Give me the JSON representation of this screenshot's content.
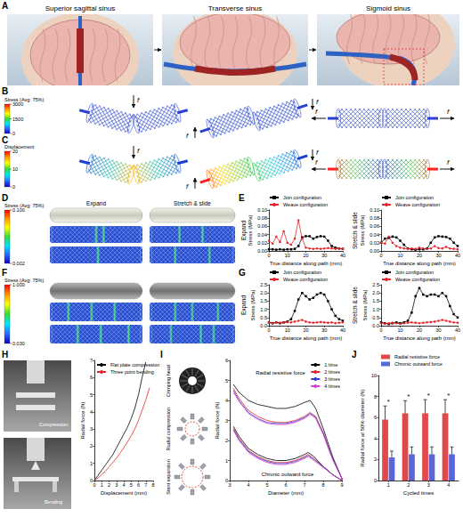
{
  "panels": {
    "A": {
      "label": "A",
      "scenes": [
        "Superior sagittal sinus",
        "Transverse sinus",
        "Sigmoid sinus"
      ]
    },
    "B": {
      "label": "B",
      "colorbar": {
        "title": "Stress (Avg: 75%)",
        "ticks": [
          3000,
          1500,
          0
        ]
      },
      "force": "f"
    },
    "C": {
      "label": "C",
      "colorbar": {
        "title": "Displacement",
        "ticks": [
          20,
          10,
          0
        ]
      },
      "force": "f"
    },
    "D": {
      "label": "D",
      "colorbar": {
        "title": "Stress (Avg: 75%)",
        "ticks": [
          {
            "value": 0.1,
            "label": "0.100"
          },
          {
            "value": 0.002,
            "label": "0.002"
          }
        ]
      },
      "columns": [
        "Expand",
        "Stretch & slide"
      ]
    },
    "E": {
      "label": "E"
    },
    "F": {
      "label": "F",
      "colorbar": {
        "title": "Stress (Avg: 75%)",
        "ticks": [
          {
            "value": 1,
            "label": "1.000"
          },
          {
            "value": 0.03,
            "label": "0.030"
          }
        ]
      }
    },
    "G": {
      "label": "G"
    },
    "H": {
      "label": "H",
      "photos": [
        "Compression",
        "Bending"
      ]
    },
    "I": {
      "label": "I",
      "icons": [
        "Crimping head",
        "Radial compression",
        "Stent expansion"
      ]
    },
    "J": {
      "label": "J"
    }
  },
  "chart_data": [
    {
      "type": "line",
      "title": "Expand",
      "x_label": "True distance along path (mm)",
      "y_label": "Stress (MPa)",
      "xlim": [
        0,
        40
      ],
      "xticks": [
        0,
        10,
        20,
        30,
        40
      ],
      "ylim": [
        0,
        0.1
      ],
      "yticks": [
        {
          "value": 0,
          "label": "0.00"
        },
        0.02,
        0.04,
        0.06,
        0.08,
        {
          "value": 0.1,
          "label": "0.10"
        }
      ],
      "grid": false,
      "series": [
        {
          "name": "Join configuration",
          "color": "#000000",
          "marker": "square",
          "line_style": "solid",
          "x": [
            0,
            2,
            4,
            6,
            8,
            10,
            12,
            14,
            16,
            18,
            20,
            22,
            24,
            26,
            28,
            30,
            32,
            34,
            36,
            38,
            40
          ],
          "values": [
            0.004,
            0.004,
            0.003,
            0.004,
            0.003,
            0.004,
            0.004,
            0.005,
            0.012,
            0.033,
            0.036,
            0.036,
            0.03,
            0.034,
            0.036,
            0.035,
            0.025,
            0.012,
            0.008,
            0.006,
            0.005
          ]
        },
        {
          "name": "Weave configuration",
          "color": "#e8232a",
          "marker": "circle",
          "line_style": "solid",
          "x": [
            0,
            2,
            4,
            6,
            8,
            10,
            12,
            14,
            16,
            18,
            20,
            22,
            24,
            26,
            28,
            30,
            32,
            34,
            36,
            38,
            40
          ],
          "values": [
            0.025,
            0.018,
            0.035,
            0.022,
            0.048,
            0.02,
            0.015,
            0.03,
            0.075,
            0.03,
            0.008,
            0.006,
            0.005,
            0.006,
            0.005,
            0.006,
            0.007,
            0.006,
            0.005,
            0.006,
            0.005
          ]
        }
      ]
    },
    {
      "type": "line",
      "title": "Stretch & slide",
      "x_label": "True distance along path (mm)",
      "y_label": "Stress (MPa)",
      "xlim": [
        0,
        40
      ],
      "xticks": [
        0,
        10,
        20,
        30,
        40
      ],
      "ylim": [
        0,
        0.1
      ],
      "yticks": [
        {
          "value": 0,
          "label": "0.00"
        },
        0.02,
        0.04,
        0.06,
        0.08,
        {
          "value": 0.1,
          "label": "0.10"
        }
      ],
      "grid": false,
      "series": [
        {
          "name": "Join configuration",
          "color": "#000000",
          "marker": "square",
          "line_style": "solid",
          "x": [
            0,
            2,
            4,
            6,
            8,
            10,
            12,
            14,
            16,
            18,
            20,
            22,
            24,
            26,
            28,
            30,
            32,
            34,
            36,
            38,
            40
          ],
          "values": [
            0.02,
            0.03,
            0.032,
            0.035,
            0.033,
            0.025,
            0.015,
            0.006,
            0.004,
            0.003,
            0.004,
            0.004,
            0.006,
            0.02,
            0.033,
            0.036,
            0.035,
            0.034,
            0.03,
            0.02,
            0.012
          ]
        },
        {
          "name": "Weave configuration",
          "color": "#e8232a",
          "marker": "circle",
          "line_style": "solid",
          "x": [
            0,
            2,
            4,
            6,
            8,
            10,
            12,
            14,
            16,
            18,
            20,
            22,
            24,
            26,
            28,
            30,
            32,
            34,
            36,
            38,
            40
          ],
          "values": [
            0.02,
            0.018,
            0.035,
            0.02,
            0.012,
            0.008,
            0.006,
            0.005,
            0.006,
            0.005,
            0.008,
            0.006,
            0.005,
            0.006,
            0.012,
            0.007,
            0.006,
            0.01,
            0.006,
            0.005,
            0.004
          ]
        }
      ]
    },
    {
      "type": "line",
      "title": "Expand",
      "x_label": "True distance along path (mm)",
      "y_label": "Stress (MPa)",
      "xlim": [
        0,
        40
      ],
      "xticks": [
        0,
        10,
        20,
        30,
        40
      ],
      "ylim": [
        0,
        2.5
      ],
      "yticks": [
        {
          "value": 0,
          "label": "0.0"
        },
        0.5,
        {
          "value": 1,
          "label": "1.0"
        },
        1.5,
        {
          "value": 2,
          "label": "2.0"
        },
        2.5
      ],
      "grid": false,
      "series": [
        {
          "name": "Join configuration",
          "color": "#000000",
          "marker": "square",
          "line_style": "solid",
          "x": [
            0,
            2,
            4,
            6,
            8,
            10,
            12,
            14,
            16,
            18,
            20,
            22,
            24,
            26,
            28,
            30,
            32,
            34,
            36,
            38,
            40
          ],
          "values": [
            0.2,
            0.15,
            0.2,
            0.15,
            0.2,
            0.25,
            0.4,
            0.9,
            1.6,
            2.0,
            1.8,
            1.6,
            1.7,
            1.9,
            2.0,
            1.9,
            1.5,
            1.0,
            0.6,
            0.4,
            0.3
          ]
        },
        {
          "name": "Weave configuration",
          "color": "#e8232a",
          "marker": "circle",
          "line_style": "solid",
          "x": [
            0,
            2,
            4,
            6,
            8,
            10,
            12,
            14,
            16,
            18,
            20,
            22,
            24,
            26,
            28,
            30,
            32,
            34,
            36,
            38,
            40
          ],
          "values": [
            0.2,
            0.15,
            0.2,
            0.18,
            0.2,
            0.22,
            0.2,
            0.25,
            0.3,
            0.35,
            0.25,
            0.2,
            0.18,
            0.2,
            0.22,
            0.2,
            0.18,
            0.2,
            0.15,
            0.18,
            0.2
          ]
        }
      ]
    },
    {
      "type": "line",
      "title": "Stretch & slide",
      "x_label": "True distance along path (mm)",
      "y_label": "Stress (MPa)",
      "xlim": [
        0,
        40
      ],
      "xticks": [
        0,
        10,
        20,
        30,
        40
      ],
      "ylim": [
        0,
        2.5
      ],
      "yticks": [
        {
          "value": 0,
          "label": "0.0"
        },
        0.5,
        {
          "value": 1,
          "label": "1.0"
        },
        1.5,
        {
          "value": 2,
          "label": "2.0"
        },
        2.5
      ],
      "grid": false,
      "series": [
        {
          "name": "Join configuration",
          "color": "#000000",
          "marker": "square",
          "line_style": "solid",
          "x": [
            0,
            2,
            4,
            6,
            8,
            10,
            12,
            14,
            16,
            18,
            20,
            22,
            24,
            26,
            28,
            30,
            32,
            34,
            36,
            38,
            40
          ],
          "values": [
            0.2,
            0.15,
            0.1,
            0.15,
            0.2,
            0.15,
            0.2,
            0.3,
            0.8,
            1.8,
            2.3,
            1.9,
            1.8,
            1.9,
            1.9,
            1.8,
            2.0,
            1.8,
            1.2,
            0.7,
            0.5
          ]
        },
        {
          "name": "Weave configuration",
          "color": "#e8232a",
          "marker": "circle",
          "line_style": "solid",
          "x": [
            0,
            2,
            4,
            6,
            8,
            10,
            12,
            14,
            16,
            18,
            20,
            22,
            24,
            26,
            28,
            30,
            32,
            34,
            36,
            38,
            40
          ],
          "values": [
            0.15,
            0.12,
            0.15,
            0.18,
            0.15,
            0.12,
            0.15,
            0.18,
            0.2,
            0.18,
            0.15,
            0.18,
            0.2,
            0.22,
            0.25,
            0.3,
            0.35,
            0.3,
            0.25,
            0.2,
            0.18
          ]
        }
      ]
    },
    {
      "type": "line",
      "x_label": "Displacement (mm)",
      "y_label": "Radial force (N)",
      "xlim": [
        0,
        8
      ],
      "xticks": [
        0,
        1,
        2,
        3,
        4,
        5,
        6,
        7,
        8
      ],
      "ylim": [
        0,
        7
      ],
      "yticks": [
        0,
        1,
        2,
        3,
        4,
        5,
        6,
        7
      ],
      "grid": false,
      "series": [
        {
          "name": "Flat plate compression",
          "color": "#000000",
          "marker": "none",
          "line_style": "solid",
          "x": [
            0,
            0.5,
            1,
            1.5,
            2,
            2.5,
            3,
            3.5,
            4,
            4.5,
            5,
            5.5,
            6,
            6.5,
            7
          ],
          "values": [
            0,
            0.3,
            0.6,
            0.9,
            1.2,
            1.5,
            1.9,
            2.3,
            2.7,
            3.1,
            3.6,
            4.2,
            5.0,
            6.0,
            6.9
          ]
        },
        {
          "name": "Three point bending",
          "color": "#e8232a",
          "marker": "none",
          "line_style": "solid",
          "x": [
            0,
            0.5,
            1,
            1.5,
            2,
            2.5,
            3,
            3.5,
            4,
            4.5,
            5,
            5.5,
            6,
            6.5,
            7,
            7.5
          ],
          "values": [
            0,
            0.15,
            0.35,
            0.55,
            0.8,
            1.05,
            1.3,
            1.6,
            1.9,
            2.25,
            2.6,
            3.0,
            3.5,
            4.1,
            4.7,
            5.4
          ]
        }
      ]
    },
    {
      "type": "line",
      "x_label": "Diameter (mm)",
      "y_label": "Radial force (N)",
      "xlim": [
        3,
        9
      ],
      "xticks": [
        3,
        4,
        5,
        6,
        7,
        8,
        9
      ],
      "ylim": [
        0,
        6
      ],
      "yticks": [
        0,
        1,
        2,
        3,
        4,
        5,
        6
      ],
      "grid": false,
      "annotations": [
        "Radial resistive force",
        "Chronic outward force"
      ],
      "series": [
        {
          "name": "1 time",
          "color": "#000000",
          "marker": "none",
          "line_style": "solid",
          "x": [
            3.2,
            3.5,
            4,
            4.5,
            5,
            5.5,
            6,
            6.5,
            7,
            7.3,
            7.6,
            8,
            8.5,
            9,
            9,
            8.5,
            8,
            7.5,
            7.2,
            7,
            6.5,
            6,
            5.5,
            5,
            4.5,
            4,
            3.5,
            3.2
          ],
          "values": [
            4.8,
            4.4,
            4.0,
            3.8,
            3.7,
            3.6,
            3.6,
            3.7,
            3.9,
            4.0,
            3.6,
            2.6,
            1.2,
            0.1,
            0,
            0.3,
            0.7,
            1.2,
            1.4,
            1.3,
            1.1,
            1.0,
            1.0,
            1.1,
            1.3,
            1.6,
            2.2,
            2.7
          ]
        },
        {
          "name": "2 times",
          "color": "#e8232a",
          "marker": "none",
          "line_style": "solid",
          "x": [
            3.2,
            3.5,
            4,
            4.5,
            5,
            5.5,
            6,
            6.5,
            7,
            7.3,
            7.6,
            8,
            8.5,
            9,
            9,
            8.5,
            8,
            7.5,
            7.2,
            7,
            6.5,
            6,
            5.5,
            5,
            4.5,
            4,
            3.5,
            3.2
          ],
          "values": [
            4.6,
            4.1,
            3.5,
            3.2,
            3.0,
            2.9,
            2.9,
            3.0,
            3.2,
            3.4,
            3.2,
            2.4,
            1.1,
            0.1,
            0,
            0.3,
            0.7,
            1.1,
            1.3,
            1.2,
            1.0,
            0.9,
            0.9,
            1.0,
            1.2,
            1.5,
            2.1,
            2.6
          ]
        },
        {
          "name": "3 times",
          "color": "#2b3fd0",
          "marker": "none",
          "line_style": "solid",
          "x": [
            3.2,
            3.5,
            4,
            4.5,
            5,
            5.5,
            6,
            6.5,
            7,
            7.3,
            7.6,
            8,
            8.5,
            9,
            9,
            8.5,
            8,
            7.5,
            7.2,
            7,
            6.5,
            6,
            5.5,
            5,
            4.5,
            4,
            3.5,
            3.2
          ],
          "values": [
            4.5,
            4.0,
            3.4,
            3.1,
            2.9,
            2.85,
            2.85,
            2.95,
            3.15,
            3.35,
            3.15,
            2.35,
            1.1,
            0.1,
            0,
            0.3,
            0.7,
            1.05,
            1.25,
            1.15,
            0.95,
            0.85,
            0.85,
            0.95,
            1.15,
            1.45,
            2.05,
            2.55
          ]
        },
        {
          "name": "4 times",
          "color": "#d63bd6",
          "marker": "none",
          "line_style": "solid",
          "x": [
            3.2,
            3.5,
            4,
            4.5,
            5,
            5.5,
            6,
            6.5,
            7,
            7.3,
            7.6,
            8,
            8.5,
            9,
            9,
            8.5,
            8,
            7.5,
            7.2,
            7,
            6.5,
            6,
            5.5,
            5,
            4.5,
            4,
            3.5,
            3.2
          ],
          "values": [
            4.4,
            3.95,
            3.35,
            3.05,
            2.85,
            2.8,
            2.8,
            2.9,
            3.1,
            3.3,
            3.1,
            2.3,
            1.05,
            0.1,
            0,
            0.3,
            0.65,
            1.0,
            1.2,
            1.1,
            0.9,
            0.8,
            0.8,
            0.9,
            1.1,
            1.4,
            2.0,
            2.5
          ]
        }
      ]
    },
    {
      "type": "bar",
      "x_label": "Cycled times",
      "y_label": "Radial force at 50% diameter (N)",
      "categories": [
        "1",
        "2",
        "3",
        "4"
      ],
      "ylim": [
        0,
        10
      ],
      "yticks": [
        0,
        2,
        4,
        6,
        8,
        10
      ],
      "grid": false,
      "annotations": [
        "*",
        "*",
        "*",
        "*"
      ],
      "series": [
        {
          "name": "Radial resistive force",
          "color": "#e0484a",
          "values": [
            5.8,
            6.4,
            6.4,
            6.4
          ],
          "errors": [
            1.3,
            1.2,
            1.3,
            1.3
          ]
        },
        {
          "name": "Chronic outward force",
          "color": "#5a66d6",
          "values": [
            2.2,
            2.5,
            2.5,
            2.5
          ],
          "errors": [
            0.6,
            0.7,
            0.7,
            0.7
          ]
        }
      ]
    }
  ]
}
